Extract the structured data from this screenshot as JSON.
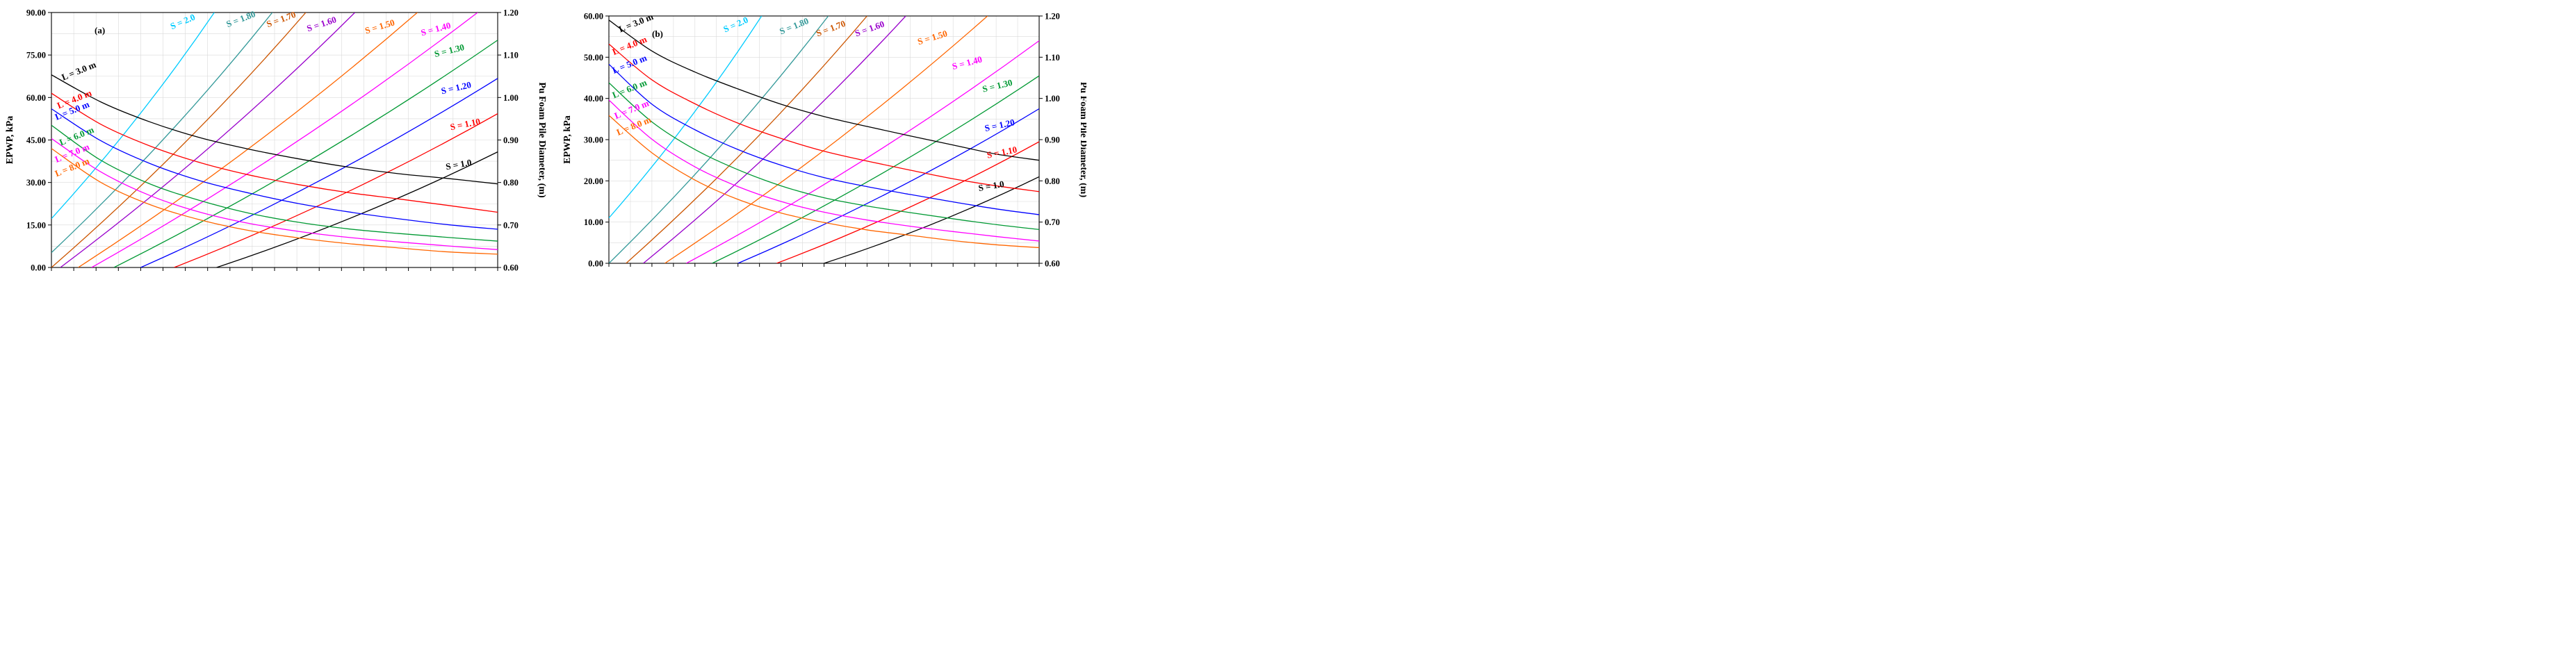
{
  "colors": {
    "black": "#000000",
    "red": "#ff0000",
    "blue": "#0000ff",
    "green": "#009933",
    "magenta": "#ff00ff",
    "orange": "#ff6600",
    "purple": "#9900cc",
    "brown": "#cc5500",
    "teal": "#339999",
    "cyan": "#00ccff"
  },
  "chart_data": [
    {
      "type": "line",
      "panel_label": "(a)",
      "title": "",
      "xlabel": "",
      "ylabel_left": "EPWP, kPa",
      "ylabel_right": "Pu Foam Pile Diameter, (m)",
      "x_range": [
        0,
        1
      ],
      "ylim_left": [
        0,
        90
      ],
      "ylim_right": [
        0.6,
        1.2
      ],
      "yticks_left": [
        "0.00",
        "15.00",
        "30.00",
        "45.00",
        "60.00",
        "75.00",
        "90.00"
      ],
      "yticks_right": [
        "0.60",
        "0.70",
        "0.80",
        "0.90",
        "1.00",
        "1.10",
        "1.20"
      ],
      "grid": true,
      "series_left": [
        {
          "name": "L = 3.0 m",
          "color": "black",
          "values": [
            68,
            58.4,
            51.3,
            45.8,
            41.7,
            38.3,
            35.4,
            33.1,
            31.4,
            29.5
          ],
          "label_at": [
            0.02,
            66
          ]
        },
        {
          "name": "L = 4.0 m",
          "color": "red",
          "values": [
            61.5,
            50.5,
            42.8,
            37,
            32.6,
            29.2,
            26.4,
            24.2,
            21.9,
            19.5
          ],
          "label_at": [
            0.01,
            56
          ]
        },
        {
          "name": "L = 5.0 m",
          "color": "blue",
          "values": [
            56,
            44.7,
            36.6,
            30.6,
            26.2,
            22.5,
            19.6,
            17.2,
            15.1,
            13.5
          ],
          "label_at": [
            0.005,
            52
          ]
        },
        {
          "name": "L = 6.0 m",
          "color": "green",
          "values": [
            50.2,
            37.8,
            29.4,
            23.6,
            19.1,
            15.9,
            13.6,
            12,
            10.6,
            9.3
          ],
          "label_at": [
            0.015,
            43
          ]
        },
        {
          "name": "L = 7.0 m",
          "color": "magenta",
          "values": [
            45.5,
            33.7,
            25.3,
            19.5,
            15.5,
            12.7,
            10.6,
            9,
            7.6,
            6.3
          ],
          "label_at": [
            0.005,
            37
          ]
        },
        {
          "name": "L = 8.0 m",
          "color": "orange",
          "values": [
            42,
            30,
            22.1,
            16.8,
            13,
            10.4,
            8.4,
            6.9,
            5.5,
            4.7
          ],
          "label_at": [
            0.005,
            32
          ]
        }
      ],
      "series_right": [
        {
          "name": "S = 2.0",
          "color": "cyan",
          "x_start": 0.0,
          "y_start": 0.715,
          "x_end": 0.365,
          "y_end": 1.2,
          "label_at": [
            0.27,
            1.16
          ]
        },
        {
          "name": "S = 1.80",
          "color": "teal",
          "x_start": 0.0,
          "y_start": 0.635,
          "x_end": 0.495,
          "y_end": 1.2,
          "label_at": [
            0.395,
            1.165
          ]
        },
        {
          "name": "S = 1.70",
          "color": "brown",
          "x_start": 0.0,
          "y_start": 0.6,
          "x_end": 0.57,
          "y_end": 1.2,
          "label_at": [
            0.485,
            1.165
          ]
        },
        {
          "name": "S = 1.60",
          "color": "purple",
          "x_start": 0.02,
          "y_start": 0.6,
          "x_end": 0.68,
          "y_end": 1.2,
          "label_at": [
            0.575,
            1.155
          ]
        },
        {
          "name": "S = 1.50",
          "color": "orange",
          "x_start": 0.06,
          "y_start": 0.6,
          "x_end": 0.82,
          "y_end": 1.2,
          "label_at": [
            0.705,
            1.15
          ]
        },
        {
          "name": "S = 1.40",
          "color": "magenta",
          "x_start": 0.09,
          "y_start": 0.6,
          "x_end": 0.955,
          "y_end": 1.2,
          "label_at": [
            0.83,
            1.145
          ]
        },
        {
          "name": "S = 1.30",
          "color": "green",
          "x_start": 0.14,
          "y_start": 0.6,
          "x_end": 1.0,
          "y_end": 1.135,
          "label_at": [
            0.86,
            1.095
          ]
        },
        {
          "name": "S = 1.20",
          "color": "blue",
          "x_start": 0.2,
          "y_start": 0.6,
          "x_end": 1.0,
          "y_end": 1.045,
          "label_at": [
            0.875,
            1.008
          ]
        },
        {
          "name": "S = 1.10",
          "color": "red",
          "x_start": 0.275,
          "y_start": 0.6,
          "x_end": 1.0,
          "y_end": 0.962,
          "label_at": [
            0.895,
            0.923
          ]
        },
        {
          "name": "S = 1.0",
          "color": "black",
          "x_start": 0.37,
          "y_start": 0.6,
          "x_end": 1.0,
          "y_end": 0.872,
          "label_at": [
            0.885,
            0.83
          ]
        }
      ]
    },
    {
      "type": "line",
      "panel_label": "(b)",
      "title": "",
      "xlabel": "",
      "ylabel_left": "EPWP, kPa",
      "ylabel_right": "Pu Foam Pile Diameter, (m)",
      "x_range": [
        0,
        1
      ],
      "ylim_left": [
        0,
        60
      ],
      "ylim_right": [
        0.6,
        1.2
      ],
      "yticks_left": [
        "0.00",
        "10.00",
        "20.00",
        "30.00",
        "40.00",
        "50.00",
        "60.00"
      ],
      "yticks_right": [
        "0.60",
        "0.70",
        "0.80",
        "0.90",
        "1.00",
        "1.10",
        "1.20"
      ],
      "grid": true,
      "series_left": [
        {
          "name": "L = 3.0 m",
          "color": "black",
          "values": [
            59,
            51.5,
            46.4,
            42.3,
            38.6,
            35.6,
            33.2,
            30.9,
            28.7,
            26.5,
            25
          ],
          "label_at": [
            0.02,
            56
          ]
        },
        {
          "name": "L = 4.0 m",
          "color": "red",
          "values": [
            53.2,
            44.5,
            38.7,
            34,
            30.3,
            27.2,
            24.8,
            22.6,
            20.5,
            18.8,
            17.4
          ],
          "label_at": [
            0.005,
            50.5
          ]
        },
        {
          "name": "L = 5.0 m",
          "color": "blue",
          "values": [
            48.3,
            38.6,
            32.4,
            27.6,
            23.8,
            20.8,
            18.6,
            16.7,
            14.9,
            13.2,
            11.8
          ],
          "label_at": [
            0.005,
            46
          ]
        },
        {
          "name": "L = 6.0 m",
          "color": "green",
          "values": [
            43.8,
            34.3,
            27.6,
            22.7,
            18.8,
            15.9,
            13.9,
            12.3,
            10.8,
            9.4,
            8.2
          ],
          "label_at": [
            0.005,
            40
          ]
        },
        {
          "name": "L = 7.0 m",
          "color": "magenta",
          "values": [
            39.6,
            30.1,
            23.4,
            18.6,
            15,
            12.4,
            10.5,
            9,
            7.7,
            6.5,
            5.4
          ],
          "label_at": [
            0.01,
            35
          ]
        },
        {
          "name": "L = 8.0 m",
          "color": "orange",
          "values": [
            35.9,
            26.8,
            20.2,
            15.5,
            12.2,
            9.9,
            8.1,
            6.8,
            5.5,
            4.5,
            3.8
          ],
          "label_at": [
            0.015,
            31
          ]
        }
      ],
      "series_right": [
        {
          "name": "S = 2.0",
          "color": "cyan",
          "x_start": 0.0,
          "y_start": 0.71,
          "x_end": 0.355,
          "y_end": 1.2,
          "label_at": [
            0.27,
            1.16
          ]
        },
        {
          "name": "S = 1.80",
          "color": "teal",
          "x_start": 0.0,
          "y_start": 0.6,
          "x_end": 0.51,
          "y_end": 1.2,
          "label_at": [
            0.4,
            1.155
          ]
        },
        {
          "name": "S = 1.70",
          "color": "brown",
          "x_start": 0.04,
          "y_start": 0.6,
          "x_end": 0.6,
          "y_end": 1.2,
          "label_at": [
            0.485,
            1.15
          ]
        },
        {
          "name": "S = 1.60",
          "color": "purple",
          "x_start": 0.08,
          "y_start": 0.6,
          "x_end": 0.69,
          "y_end": 1.2,
          "label_at": [
            0.575,
            1.15
          ]
        },
        {
          "name": "S = 1.50",
          "color": "orange",
          "x_start": 0.13,
          "y_start": 0.6,
          "x_end": 0.88,
          "y_end": 1.2,
          "label_at": [
            0.72,
            1.13
          ]
        },
        {
          "name": "S = 1.40",
          "color": "magenta",
          "x_start": 0.18,
          "y_start": 0.6,
          "x_end": 1.0,
          "y_end": 1.14,
          "label_at": [
            0.8,
            1.07
          ]
        },
        {
          "name": "S = 1.30",
          "color": "green",
          "x_start": 0.24,
          "y_start": 0.6,
          "x_end": 1.0,
          "y_end": 1.055,
          "label_at": [
            0.87,
            1.015
          ]
        },
        {
          "name": "S = 1.20",
          "color": "blue",
          "x_start": 0.3,
          "y_start": 0.6,
          "x_end": 1.0,
          "y_end": 0.975,
          "label_at": [
            0.875,
            0.92
          ]
        },
        {
          "name": "S = 1.10",
          "color": "red",
          "x_start": 0.39,
          "y_start": 0.6,
          "x_end": 1.0,
          "y_end": 0.895,
          "label_at": [
            0.88,
            0.855
          ]
        },
        {
          "name": "S = 1.0",
          "color": "black",
          "x_start": 0.5,
          "y_start": 0.6,
          "x_end": 1.0,
          "y_end": 0.81,
          "label_at": [
            0.86,
            0.775
          ]
        }
      ]
    }
  ]
}
